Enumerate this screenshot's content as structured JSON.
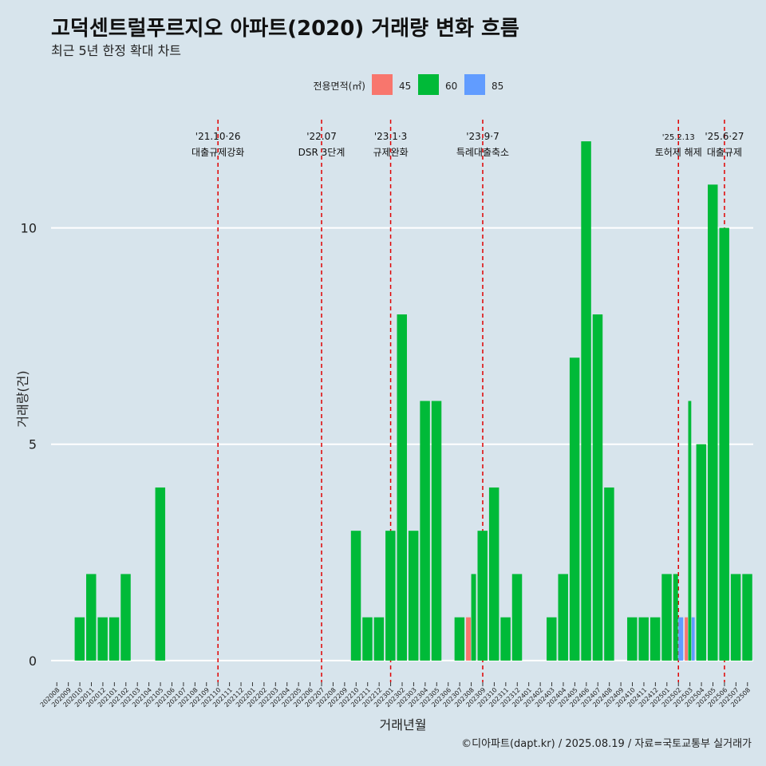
{
  "chart_data": {
    "type": "bar",
    "title": "고덕센트럴푸르지오 아파트(2020) 거래량 변화 흐름",
    "subtitle": "최근 5년 한정 확대 차트",
    "xlabel": "거래년월",
    "ylabel": "거래량(건)",
    "caption": "©디아파트(dapt.kr) / 2025.08.19 / 자료=국토교통부 실거래가",
    "ylim": [
      -0.5,
      12.5
    ],
    "yticks": [
      0,
      5,
      10
    ],
    "legend": {
      "title": "전용면적(㎡)",
      "position": "top",
      "entries": [
        "45",
        "60",
        "85"
      ]
    },
    "colors": {
      "45": "#f8766d",
      "60": "#00ba38",
      "85": "#619cff"
    },
    "categories": [
      "202008",
      "202009",
      "202010",
      "202011",
      "202012",
      "202101",
      "202102",
      "202103",
      "202104",
      "202105",
      "202106",
      "202107",
      "202108",
      "202109",
      "202110",
      "202111",
      "202112",
      "202201",
      "202202",
      "202203",
      "202204",
      "202205",
      "202206",
      "202207",
      "202208",
      "202209",
      "202210",
      "202211",
      "202212",
      "202301",
      "202302",
      "202303",
      "202304",
      "202305",
      "202306",
      "202307",
      "202308",
      "202309",
      "202310",
      "202311",
      "202312",
      "202401",
      "202402",
      "202403",
      "202404",
      "202405",
      "202406",
      "202407",
      "202408",
      "202409",
      "202410",
      "202411",
      "202412",
      "202501",
      "202502",
      "202503",
      "202504",
      "202505",
      "202506",
      "202507",
      "202508"
    ],
    "bars": [
      {
        "month": "202010",
        "segments": [
          {
            "area": "60",
            "value": 1
          }
        ]
      },
      {
        "month": "202011",
        "segments": [
          {
            "area": "60",
            "value": 2
          }
        ]
      },
      {
        "month": "202012",
        "segments": [
          {
            "area": "60",
            "value": 1
          }
        ]
      },
      {
        "month": "202101",
        "segments": [
          {
            "area": "60",
            "value": 1
          }
        ]
      },
      {
        "month": "202102",
        "segments": [
          {
            "area": "60",
            "value": 2
          }
        ]
      },
      {
        "month": "202105",
        "segments": [
          {
            "area": "60",
            "value": 4
          }
        ]
      },
      {
        "month": "202210",
        "segments": [
          {
            "area": "60",
            "value": 3
          }
        ]
      },
      {
        "month": "202211",
        "segments": [
          {
            "area": "60",
            "value": 1
          }
        ]
      },
      {
        "month": "202212",
        "segments": [
          {
            "area": "60",
            "value": 1
          }
        ]
      },
      {
        "month": "202301",
        "segments": [
          {
            "area": "60",
            "value": 3
          }
        ]
      },
      {
        "month": "202302",
        "segments": [
          {
            "area": "60",
            "value": 8
          }
        ]
      },
      {
        "month": "202303",
        "segments": [
          {
            "area": "60",
            "value": 3
          }
        ]
      },
      {
        "month": "202304",
        "segments": [
          {
            "area": "60",
            "value": 6
          }
        ]
      },
      {
        "month": "202305",
        "segments": [
          {
            "area": "60",
            "value": 6
          }
        ]
      },
      {
        "month": "202307",
        "segments": [
          {
            "area": "60",
            "value": 1
          }
        ]
      },
      {
        "month": "202308",
        "segments": [
          {
            "area": "45",
            "value": 1
          },
          {
            "area": "60",
            "value": 2
          }
        ]
      },
      {
        "month": "202309",
        "segments": [
          {
            "area": "60",
            "value": 3
          }
        ]
      },
      {
        "month": "202310",
        "segments": [
          {
            "area": "60",
            "value": 4
          }
        ]
      },
      {
        "month": "202311",
        "segments": [
          {
            "area": "60",
            "value": 1
          }
        ]
      },
      {
        "month": "202312",
        "segments": [
          {
            "area": "60",
            "value": 2
          }
        ]
      },
      {
        "month": "202403",
        "segments": [
          {
            "area": "60",
            "value": 1
          }
        ]
      },
      {
        "month": "202404",
        "segments": [
          {
            "area": "60",
            "value": 2
          }
        ]
      },
      {
        "month": "202405",
        "segments": [
          {
            "area": "60",
            "value": 7
          }
        ]
      },
      {
        "month": "202406",
        "segments": [
          {
            "area": "60",
            "value": 12
          }
        ]
      },
      {
        "month": "202407",
        "segments": [
          {
            "area": "60",
            "value": 8
          }
        ]
      },
      {
        "month": "202408",
        "segments": [
          {
            "area": "60",
            "value": 4
          }
        ]
      },
      {
        "month": "202410",
        "segments": [
          {
            "area": "60",
            "value": 1
          }
        ]
      },
      {
        "month": "202411",
        "segments": [
          {
            "area": "60",
            "value": 1
          }
        ]
      },
      {
        "month": "202412",
        "segments": [
          {
            "area": "60",
            "value": 1
          }
        ]
      },
      {
        "month": "202501",
        "segments": [
          {
            "area": "60",
            "value": 2
          }
        ]
      },
      {
        "month": "202502",
        "segments": [
          {
            "area": "60",
            "value": 2
          },
          {
            "area": "85",
            "value": 1
          }
        ]
      },
      {
        "month": "202503",
        "segments": [
          {
            "area": "45",
            "value": 1
          },
          {
            "area": "60",
            "value": 6
          },
          {
            "area": "85",
            "value": 1
          }
        ]
      },
      {
        "month": "202504",
        "segments": [
          {
            "area": "60",
            "value": 5
          }
        ]
      },
      {
        "month": "202505",
        "segments": [
          {
            "area": "60",
            "value": 11
          }
        ]
      },
      {
        "month": "202506",
        "segments": [
          {
            "area": "60",
            "value": 10
          }
        ]
      },
      {
        "month": "202507",
        "segments": [
          {
            "area": "60",
            "value": 2
          }
        ]
      },
      {
        "month": "202508",
        "segments": [
          {
            "area": "60",
            "value": 2
          }
        ]
      }
    ],
    "events": [
      {
        "month": "202110",
        "date": "'21.10·26",
        "label": "대출규제강화"
      },
      {
        "month": "202207",
        "date": "'22.07",
        "label": "DSR 3단계"
      },
      {
        "month": "202301",
        "date": "'23.1·3",
        "label": "규제완화"
      },
      {
        "month": "202309",
        "date": "'23.9·7",
        "label": "특례대출축소"
      },
      {
        "month": "202502",
        "date": "'25.2.13",
        "label": "토허제 해제"
      },
      {
        "month": "202506",
        "date": "'25.6·27",
        "label": "대출규제"
      }
    ]
  }
}
